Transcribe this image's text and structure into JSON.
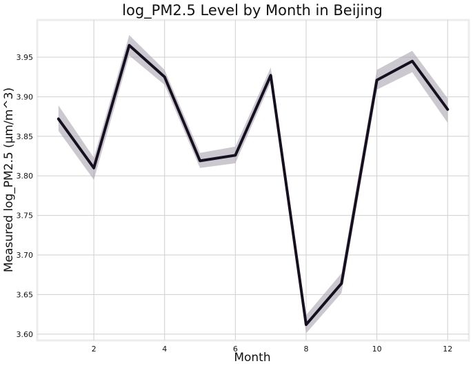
{
  "chart_data": {
    "type": "line",
    "title": "log_PM2.5 Level by Month in Beijing",
    "xlabel": "Month",
    "ylabel": "Measured log_PM2.5 (µm/m^3)",
    "x_ticks": [
      "2",
      "4",
      "6",
      "8",
      "10",
      "12"
    ],
    "y_ticks": [
      "3.60",
      "3.65",
      "3.70",
      "3.75",
      "3.80",
      "3.85",
      "3.90",
      "3.95"
    ],
    "xlim": [
      0.4,
      12.6
    ],
    "ylim": [
      3.592,
      3.997
    ],
    "grid": true,
    "legend": "none",
    "series": [
      {
        "color": "#150f20",
        "band_color": "#a8a3b0",
        "x": [
          1,
          2,
          3,
          4,
          5,
          6,
          7,
          8,
          9,
          10,
          11,
          12
        ],
        "y": [
          3.872,
          3.81,
          3.965,
          3.925,
          3.819,
          3.826,
          3.927,
          3.612,
          3.664,
          3.921,
          3.945,
          3.884
        ],
        "ci_lower": [
          3.857,
          3.795,
          3.952,
          3.915,
          3.81,
          3.816,
          3.918,
          3.601,
          3.652,
          3.909,
          3.931,
          3.867
        ],
        "ci_upper": [
          3.889,
          3.823,
          3.978,
          3.934,
          3.829,
          3.837,
          3.937,
          3.624,
          3.677,
          3.934,
          3.958,
          3.898
        ]
      }
    ]
  }
}
